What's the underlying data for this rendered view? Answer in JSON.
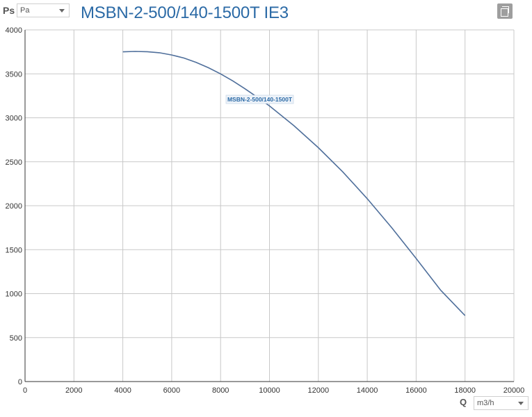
{
  "header": {
    "y_symbol": "Ps",
    "y_unit": "Pa",
    "title": "MSBN-2-500/140-1500T IE3",
    "window_icon": "restore-window-icon"
  },
  "footer": {
    "x_symbol": "Q",
    "x_unit": "m3/h"
  },
  "chart_data": {
    "type": "line",
    "title": "MSBN-2-500/140-1500T IE3",
    "xlabel": "Q",
    "ylabel": "Ps",
    "xlim": [
      0,
      20000
    ],
    "ylim": [
      0,
      4000
    ],
    "xticks": [
      0,
      2000,
      4000,
      6000,
      8000,
      10000,
      12000,
      14000,
      16000,
      18000,
      20000
    ],
    "yticks": [
      0,
      500,
      1000,
      1500,
      2000,
      2500,
      3000,
      3500,
      4000
    ],
    "grid": true,
    "series": [
      {
        "name": "MSBN-2-500/140-1500T",
        "color": "#4f6f9b",
        "points": [
          [
            4000,
            3750
          ],
          [
            4500,
            3755
          ],
          [
            5000,
            3752
          ],
          [
            5500,
            3740
          ],
          [
            6000,
            3715
          ],
          [
            6500,
            3680
          ],
          [
            7000,
            3630
          ],
          [
            7500,
            3570
          ],
          [
            8000,
            3500
          ],
          [
            8500,
            3420
          ],
          [
            9000,
            3330
          ],
          [
            9500,
            3235
          ],
          [
            10000,
            3135
          ],
          [
            11000,
            2910
          ],
          [
            12000,
            2660
          ],
          [
            13000,
            2385
          ],
          [
            14000,
            2080
          ],
          [
            15000,
            1750
          ],
          [
            16000,
            1400
          ],
          [
            17000,
            1040
          ],
          [
            18000,
            750
          ]
        ]
      }
    ]
  }
}
